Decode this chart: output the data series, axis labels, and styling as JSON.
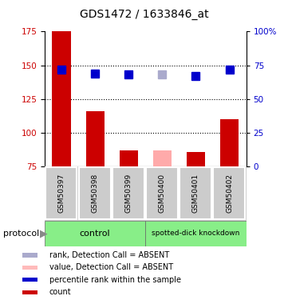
{
  "title": "GDS1472 / 1633846_at",
  "samples": [
    "GSM50397",
    "GSM50398",
    "GSM50399",
    "GSM50400",
    "GSM50401",
    "GSM50402"
  ],
  "bar_values": [
    175,
    116,
    87,
    87,
    86,
    110
  ],
  "bar_colors": [
    "#cc0000",
    "#cc0000",
    "#cc0000",
    "#ffaaaa",
    "#cc0000",
    "#cc0000"
  ],
  "rank_values": [
    147,
    144,
    143,
    143,
    142,
    147
  ],
  "rank_colors": [
    "#0000cc",
    "#0000cc",
    "#0000cc",
    "#aaaacc",
    "#0000cc",
    "#0000cc"
  ],
  "y_min": 75,
  "y_max": 175,
  "y_ticks": [
    75,
    100,
    125,
    150,
    175
  ],
  "dotted_lines": [
    100,
    125,
    150
  ],
  "control_label": "control",
  "knockdown_label": "spotted-dick knockdown",
  "protocol_label": "protocol",
  "legend_items": [
    {
      "label": "count",
      "color": "#cc0000"
    },
    {
      "label": "percentile rank within the sample",
      "color": "#0000cc"
    },
    {
      "label": "value, Detection Call = ABSENT",
      "color": "#ffbbbb"
    },
    {
      "label": "rank, Detection Call = ABSENT",
      "color": "#aaaacc"
    }
  ],
  "bar_width": 0.55,
  "rank_marker_size": 7,
  "control_bg_color": "#88ee88",
  "knockdown_bg_color": "#88ee88",
  "label_area_color": "#cccccc"
}
